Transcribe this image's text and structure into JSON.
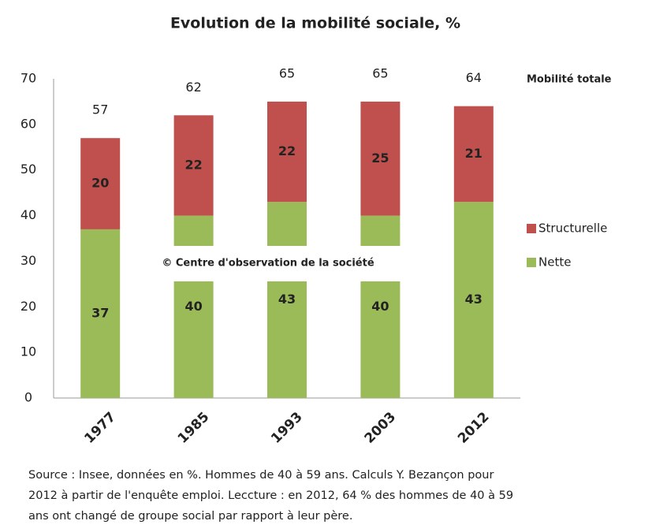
{
  "chart_data": {
    "type": "stacked_bar",
    "title": "Evolution de la mobilité sociale, %",
    "categories": [
      "1977",
      "1985",
      "1993",
      "2003",
      "2012"
    ],
    "series": [
      {
        "name": "Nette",
        "color": "#9bbb59",
        "values": [
          37,
          40,
          43,
          40,
          43
        ]
      },
      {
        "name": "Structurelle",
        "color": "#c0504d",
        "values": [
          20,
          22,
          22,
          25,
          21
        ]
      }
    ],
    "totals_label": "Mobilité totale",
    "totals": [
      57,
      62,
      65,
      65,
      64
    ],
    "ylim": [
      0,
      70
    ],
    "yticks": [
      0,
      10,
      20,
      30,
      40,
      50,
      60,
      70
    ],
    "annotation": "© Centre d'observation de la société",
    "source": [
      "Source : Insee, données en %. Hommes de 40 à 59 ans. Calculs Y. Bezançon pour",
      "2012 à partir de l'enquête emploi. Leccture : en 2012, 64 % des hommes de 40 à 59",
      "ans  ont changé de groupe social par rapport à leur père."
    ]
  }
}
